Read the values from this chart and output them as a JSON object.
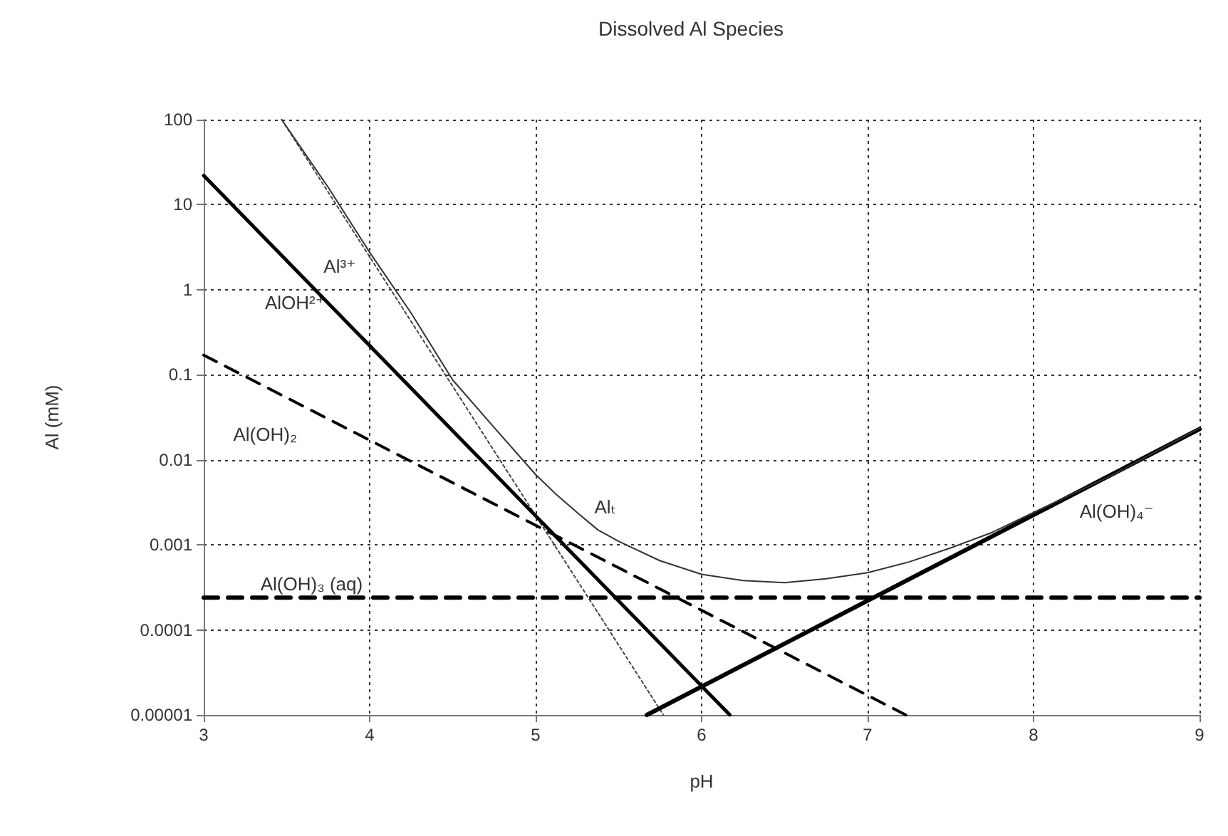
{
  "chart_data": {
    "type": "line",
    "title": "Dissolved Al Species",
    "xlabel": "pH",
    "ylabel": "Al (mM)",
    "log": "y",
    "grid": true,
    "marker": "none",
    "xlim": [
      3,
      9
    ],
    "xticks": [
      3,
      4,
      5,
      6,
      7,
      8,
      9
    ],
    "ylim": [
      1e-05,
      100
    ],
    "yticks": [
      {
        "value": 1e-05,
        "label": "0.00001"
      },
      0.0001,
      0.001,
      0.01,
      0.1,
      1,
      10,
      100
    ],
    "series": [
      {
        "name": "Al³⁺",
        "color": "#444444",
        "line_style": "dotted",
        "x": [
          3.47,
          5.77
        ],
        "values": [
          100,
          1e-05
        ]
      },
      {
        "name": "AlOH²⁺",
        "color": "#000000",
        "line_style": "solid",
        "x": [
          3,
          6.17
        ],
        "values": [
          22,
          1e-05
        ]
      },
      {
        "name": "Al(OH)₂",
        "color": "#000000",
        "line_style": "dashed",
        "x": [
          3,
          7.23
        ],
        "values": [
          0.17,
          1e-05
        ]
      },
      {
        "name": "Al(OH)₃ (aq)",
        "color": "#000000",
        "line_style": "dashed",
        "x": [
          3,
          9
        ],
        "values": [
          0.00024,
          0.00024
        ]
      },
      {
        "name": "Al(OH)₄⁻",
        "color": "#000000",
        "line_style": "solid",
        "x": [
          5.67,
          9
        ],
        "values": [
          1e-05,
          0.023
        ]
      },
      {
        "name": "Alₜ",
        "color": "#333333",
        "line_style": "solid",
        "x": [
          3.47,
          3.75,
          4,
          4.25,
          4.5,
          4.75,
          5,
          5.125,
          5.25,
          5.375,
          5.5,
          5.75,
          6,
          6.25,
          6.5,
          6.75,
          7,
          7.25,
          7.5,
          7.75,
          8,
          8.5,
          9
        ],
        "values": [
          100,
          16,
          2.75,
          0.53,
          0.087,
          0.024,
          0.0067,
          0.0039,
          0.0024,
          0.0015,
          0.0011,
          0.00065,
          0.00045,
          0.00038,
          0.00036,
          0.0004,
          0.00047,
          0.00063,
          0.00092,
          0.0014,
          0.0024,
          0.007,
          0.0236
        ]
      }
    ]
  }
}
